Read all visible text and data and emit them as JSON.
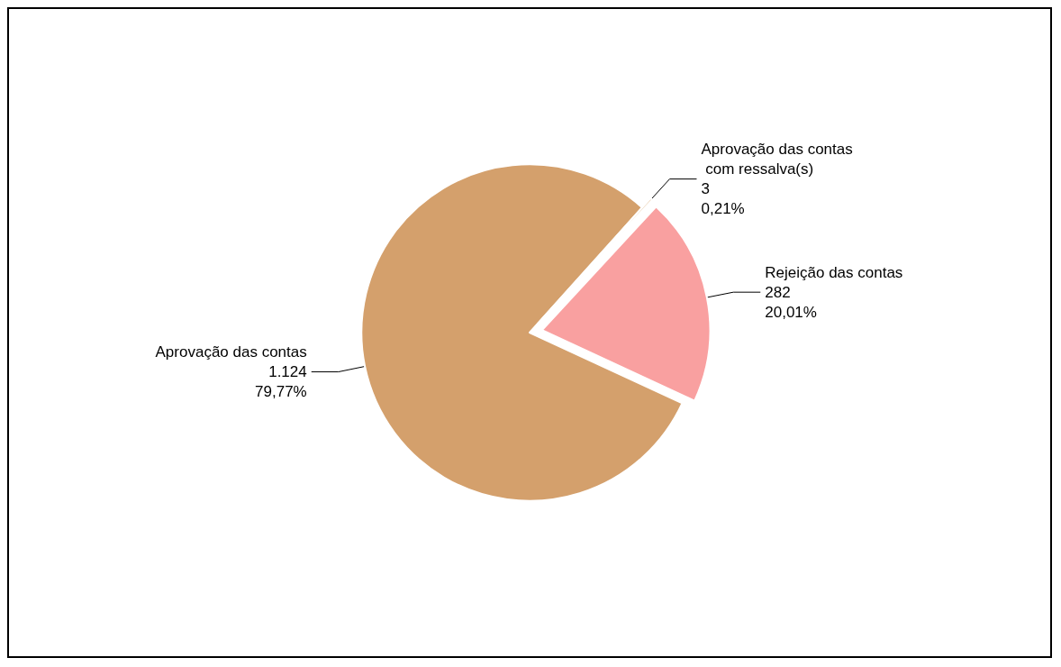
{
  "chart_data": {
    "type": "pie",
    "categories": [
      "Aprovação das contas com ressalva(s)",
      "Rejeição das contas",
      "Aprovação das contas"
    ],
    "values": [
      3,
      282,
      1124
    ],
    "colors": [
      "#e8c9a8",
      "#f9a0a0",
      "#d4a06c"
    ],
    "value_labels": [
      "3\n0,21%",
      "282\n20,01%",
      "1.124\n79,77%"
    ]
  }
}
